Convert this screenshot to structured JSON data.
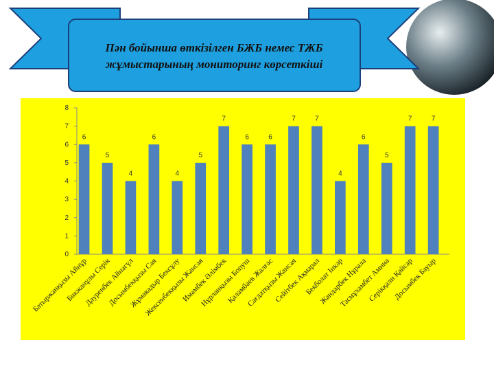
{
  "chart_data": {
    "type": "bar",
    "title": "Пән бойынша өткізілген БЖБ немес ТЖБ жұмыстарының мониторинг көрсеткіші",
    "categories": [
      "Батыржанқызы Айнұр",
      "Бикжанұлы Серік",
      "Дәуренбек Айнагүл",
      "Досымбекқызы Сая",
      "Жұмакадыр Бексұлу",
      "Жексенбекқызы Жансая",
      "Имамбек Әлімбек",
      "Нұрланқызы Бопуш",
      "Қаламбаев Жалғас",
      "Сағдатқызы Жансая",
      "Сейітбек Ақмарал",
      "Бекболат Інкәр",
      "Жандарбек Нұрала",
      "Тасмұхамбет Амина",
      "Серікқали Қайсар",
      "Досымбек Бауыр"
    ],
    "values": [
      6,
      5,
      4,
      6,
      4,
      5,
      7,
      6,
      6,
      7,
      7,
      4,
      6,
      5,
      7,
      7
    ],
    "color": "#4f81bd",
    "ylim": [
      0,
      8
    ],
    "yticks": [
      0,
      1,
      2,
      3,
      4,
      5,
      6,
      7,
      8
    ],
    "data_labels": true
  }
}
